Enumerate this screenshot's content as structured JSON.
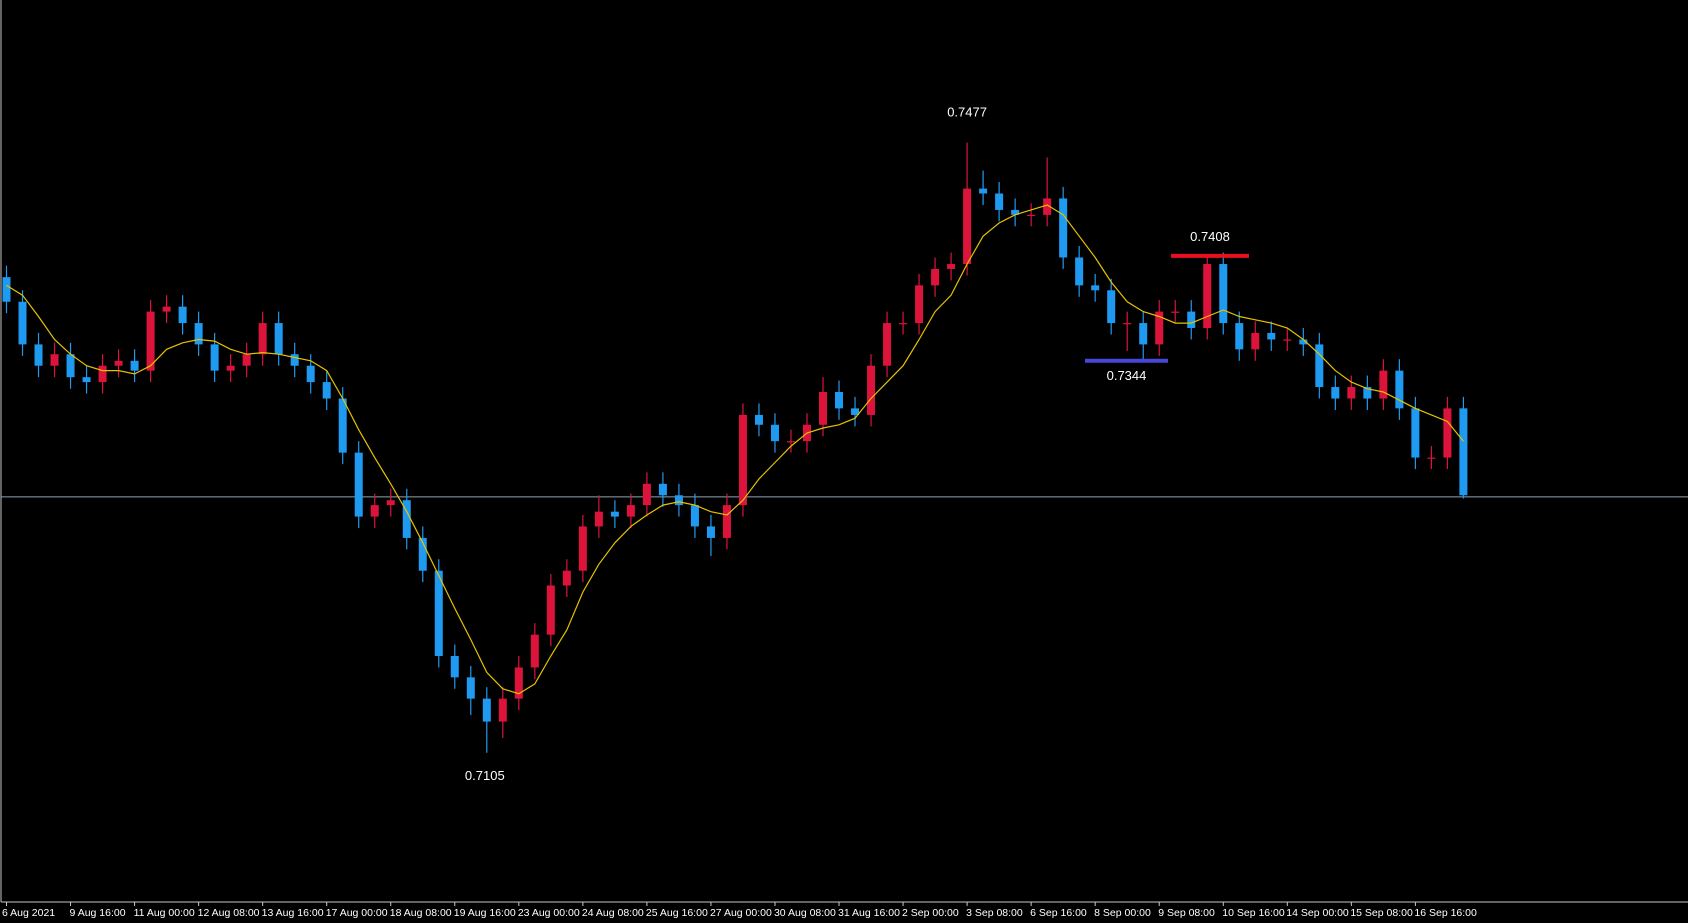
{
  "chart_data": {
    "type": "candlestick",
    "x": [
      "6 Aug 2021",
      null,
      null,
      null,
      "9 Aug 16:00",
      null,
      null,
      null,
      "11 Aug 00:00",
      null,
      null,
      null,
      "12 Aug 08:00",
      null,
      null,
      null,
      "13 Aug 16:00",
      null,
      null,
      null,
      "17 Aug 00:00",
      null,
      null,
      null,
      "18 Aug 08:00",
      null,
      null,
      null,
      "19 Aug 16:00",
      null,
      null,
      null,
      "23 Aug 00:00",
      null,
      null,
      null,
      "24 Aug 08:00",
      null,
      null,
      null,
      "25 Aug 16:00",
      null,
      null,
      null,
      "27 Aug 00:00",
      null,
      null,
      null,
      "30 Aug 08:00",
      null,
      null,
      null,
      "31 Aug 16:00",
      null,
      null,
      null,
      "2 Sep 00:00",
      null,
      null,
      null,
      "3 Sep 08:00",
      null,
      null,
      null,
      "6 Sep 16:00",
      null,
      null,
      null,
      "8 Sep 00:00",
      null,
      null,
      null,
      "9 Sep 08:00",
      null,
      null,
      null,
      "10 Sep 16:00",
      null,
      null,
      null,
      "14 Sep 00:00",
      null,
      null,
      null,
      "15 Sep 08:00",
      null,
      null,
      null,
      "16 Sep 16:00",
      null,
      null,
      null
    ],
    "open": [
      0.7395,
      0.738,
      0.7354,
      0.7341,
      0.7348,
      0.7334,
      0.7331,
      0.7341,
      0.7344,
      0.7338,
      0.7374,
      0.7377,
      0.7367,
      0.7354,
      0.7338,
      0.7341,
      0.7348,
      0.7367,
      0.7348,
      0.7341,
      0.7331,
      0.7321,
      0.7288,
      0.7249,
      0.7256,
      0.7259,
      0.7236,
      0.7216,
      0.7164,
      0.7151,
      0.7138,
      0.7124,
      0.7138,
      0.7157,
      0.7177,
      0.7207,
      0.7216,
      0.7243,
      0.7252,
      0.7249,
      0.7256,
      0.7269,
      0.7262,
      0.7256,
      0.7243,
      0.7236,
      0.7256,
      0.7311,
      0.7305,
      0.7295,
      0.7295,
      0.7305,
      0.7325,
      0.7315,
      0.7311,
      0.7341,
      0.7367,
      0.7367,
      0.739,
      0.74,
      0.7403,
      0.7449,
      0.7446,
      0.7436,
      0.7433,
      0.7433,
      0.7443,
      0.7407,
      0.739,
      0.7387,
      0.7367,
      0.7367,
      0.7354,
      0.7374,
      0.7374,
      0.7364,
      0.7403,
      0.7367,
      0.7351,
      0.7361,
      0.7357,
      0.7357,
      0.7354,
      0.7328,
      0.7321,
      0.7328,
      0.7321,
      0.7338,
      0.7315,
      0.7285,
      0.7285,
      0.7315
    ],
    "high": [
      0.7402,
      0.7387,
      0.7361,
      0.7355,
      0.7355,
      0.7341,
      0.7348,
      0.7351,
      0.7351,
      0.7381,
      0.7384,
      0.7384,
      0.7374,
      0.7361,
      0.7348,
      0.7355,
      0.7374,
      0.7374,
      0.7355,
      0.7348,
      0.7338,
      0.7328,
      0.7295,
      0.7263,
      0.7266,
      0.7266,
      0.7243,
      0.7223,
      0.7171,
      0.7158,
      0.7145,
      0.7145,
      0.7164,
      0.7184,
      0.7214,
      0.7223,
      0.725,
      0.7262,
      0.7259,
      0.7263,
      0.7276,
      0.7276,
      0.7269,
      0.7263,
      0.725,
      0.7263,
      0.7318,
      0.7318,
      0.7312,
      0.7302,
      0.7312,
      0.7334,
      0.7332,
      0.7322,
      0.7348,
      0.7374,
      0.7374,
      0.7397,
      0.7407,
      0.741,
      0.7477,
      0.746,
      0.7453,
      0.7443,
      0.744,
      0.7468,
      0.745,
      0.7414,
      0.7397,
      0.7394,
      0.7374,
      0.7374,
      0.7381,
      0.7381,
      0.7381,
      0.7408,
      0.741,
      0.7374,
      0.7368,
      0.7368,
      0.7364,
      0.7364,
      0.7361,
      0.7335,
      0.7335,
      0.7335,
      0.7345,
      0.7345,
      0.7322,
      0.7292,
      0.7322,
      0.7322
    ],
    "low": [
      0.7373,
      0.7347,
      0.7334,
      0.7334,
      0.7327,
      0.7324,
      0.7324,
      0.7334,
      0.7331,
      0.7331,
      0.7367,
      0.736,
      0.7347,
      0.7331,
      0.7331,
      0.7334,
      0.7341,
      0.7341,
      0.7334,
      0.7324,
      0.7314,
      0.7281,
      0.7242,
      0.7242,
      0.7249,
      0.7229,
      0.7209,
      0.7157,
      0.7144,
      0.7128,
      0.7105,
      0.7114,
      0.7131,
      0.715,
      0.717,
      0.72,
      0.7209,
      0.7236,
      0.7242,
      0.7242,
      0.7249,
      0.7255,
      0.7249,
      0.7236,
      0.7225,
      0.7229,
      0.7249,
      0.7298,
      0.7288,
      0.7288,
      0.7288,
      0.7298,
      0.7308,
      0.7304,
      0.7304,
      0.7334,
      0.736,
      0.736,
      0.7383,
      0.7393,
      0.7396,
      0.7439,
      0.7429,
      0.7426,
      0.7426,
      0.7426,
      0.74,
      0.7383,
      0.738,
      0.736,
      0.735,
      0.7344,
      0.7347,
      0.7367,
      0.7357,
      0.7357,
      0.736,
      0.7344,
      0.7344,
      0.735,
      0.735,
      0.7347,
      0.7321,
      0.7314,
      0.7314,
      0.7314,
      0.7314,
      0.7308,
      0.7278,
      0.7278,
      0.7278,
      0.726
    ],
    "close": [
      0.738,
      0.7354,
      0.7341,
      0.7348,
      0.7334,
      0.7331,
      0.7341,
      0.7344,
      0.7338,
      0.7374,
      0.7377,
      0.7367,
      0.7354,
      0.7338,
      0.7341,
      0.7348,
      0.7367,
      0.7348,
      0.7341,
      0.7331,
      0.7321,
      0.7288,
      0.7249,
      0.7256,
      0.7259,
      0.7236,
      0.7216,
      0.7164,
      0.7151,
      0.7138,
      0.7124,
      0.7138,
      0.7157,
      0.7177,
      0.7207,
      0.7216,
      0.7243,
      0.7252,
      0.7249,
      0.7256,
      0.7269,
      0.7262,
      0.7256,
      0.7243,
      0.7236,
      0.7256,
      0.7311,
      0.7305,
      0.7295,
      0.7295,
      0.7305,
      0.7325,
      0.7315,
      0.7311,
      0.7341,
      0.7367,
      0.7367,
      0.739,
      0.74,
      0.7403,
      0.7449,
      0.7446,
      0.7436,
      0.7433,
      0.7433,
      0.7443,
      0.7407,
      0.739,
      0.7387,
      0.7367,
      0.7367,
      0.7354,
      0.7374,
      0.7374,
      0.7364,
      0.7403,
      0.7367,
      0.7351,
      0.7361,
      0.7357,
      0.7357,
      0.7354,
      0.7328,
      0.7321,
      0.7328,
      0.7321,
      0.7338,
      0.7315,
      0.7285,
      0.7285,
      0.7315,
      0.7262
    ],
    "up_color": "#dc143c",
    "down_color": "#1e9bf0",
    "ma": {
      "color": "#e6c200",
      "values": [
        0.739,
        0.7384,
        0.7371,
        0.7357,
        0.7348,
        0.7341,
        0.7338,
        0.7338,
        0.7336,
        0.7341,
        0.7351,
        0.7355,
        0.7357,
        0.7356,
        0.7351,
        0.7348,
        0.7349,
        0.7348,
        0.7346,
        0.7344,
        0.7338,
        0.7321,
        0.7302,
        0.7285,
        0.7269,
        0.7252,
        0.7233,
        0.7213,
        0.7193,
        0.7174,
        0.7154,
        0.7144,
        0.7141,
        0.7147,
        0.7164,
        0.718,
        0.7203,
        0.722,
        0.7233,
        0.7243,
        0.725,
        0.7256,
        0.7258,
        0.7256,
        0.7252,
        0.725,
        0.7259,
        0.7272,
        0.7282,
        0.7292,
        0.73,
        0.7303,
        0.7305,
        0.7309,
        0.7321,
        0.7331,
        0.7341,
        0.7357,
        0.7374,
        0.7384,
        0.7403,
        0.742,
        0.7428,
        0.7433,
        0.7436,
        0.7439,
        0.7433,
        0.742,
        0.7407,
        0.7392,
        0.738,
        0.7374,
        0.7371,
        0.7367,
        0.7367,
        0.7371,
        0.7375,
        0.7371,
        0.7369,
        0.7367,
        0.7364,
        0.7357,
        0.7348,
        0.7338,
        0.7331,
        0.7327,
        0.7325,
        0.732,
        0.7315,
        0.7311,
        0.7307,
        0.7295
      ]
    },
    "levels": [
      {
        "value": 0.7408,
        "color": "#e8101f"
      },
      {
        "value": 0.7344,
        "color": "#4848d8"
      }
    ],
    "current": {
      "value": 0.7261,
      "color": "#8fa3b3"
    },
    "ylim": [
      0.7014,
      0.7564
    ]
  }
}
